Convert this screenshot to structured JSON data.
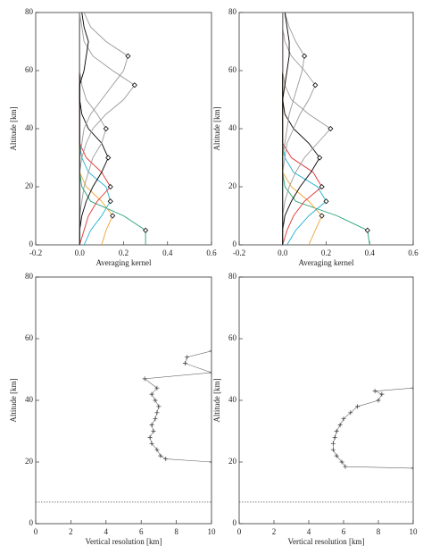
{
  "chart_data": [
    {
      "type": "line",
      "x_label": "Averaging kernel",
      "y_label": "Altitude [km]",
      "xlim": [
        -0.2,
        0.6
      ],
      "xticks": [
        -0.2,
        {
          "value": 0,
          "label": "0.0"
        },
        0.2,
        0.4,
        0.6
      ],
      "ylim": [
        0,
        80
      ],
      "yticks": [
        0,
        20,
        40,
        60,
        80
      ],
      "y": [
        0,
        5,
        10,
        15,
        20,
        25,
        30,
        35,
        40,
        45,
        50,
        55,
        60,
        65,
        70,
        75,
        80
      ],
      "series": [
        {
          "color": "#20a070",
          "values": [
            0.3,
            0.3,
            0.2,
            0.05,
            0.01,
            0,
            0,
            0,
            0,
            0,
            0,
            0,
            0,
            0,
            0,
            0,
            0
          ]
        },
        {
          "color": "#f0a030",
          "values": [
            0.1,
            0.12,
            0.15,
            0.1,
            0.03,
            0,
            0,
            0,
            0,
            0,
            0,
            0,
            0,
            0,
            0,
            0,
            0
          ]
        },
        {
          "color": "#20b0d0",
          "values": [
            0.02,
            0.05,
            0.1,
            0.14,
            0.12,
            0.04,
            0.01,
            0,
            0,
            0,
            0,
            0,
            0,
            0,
            0,
            0,
            0
          ]
        },
        {
          "color": "#e03030",
          "values": [
            0,
            0.02,
            0.04,
            0.08,
            0.14,
            0.1,
            0.03,
            0,
            0,
            0,
            0,
            0,
            0,
            0,
            0,
            0,
            0
          ]
        },
        {
          "color": "#000000",
          "values": [
            0,
            0,
            0.01,
            0.03,
            0.06,
            0.1,
            0.13,
            0.1,
            0.04,
            0.01,
            0,
            0,
            0,
            0,
            0,
            0,
            0
          ]
        },
        {
          "color": "#999999",
          "values": [
            0,
            0,
            0,
            0.01,
            0.02,
            0.04,
            0.06,
            0.1,
            0.12,
            0.08,
            0.03,
            0.01,
            0,
            0,
            0,
            0,
            0
          ]
        },
        {
          "color": "#999999",
          "values": [
            0,
            0,
            0,
            0,
            0,
            0,
            0.01,
            0.03,
            0.06,
            0.12,
            0.2,
            0.25,
            0.15,
            0.06,
            0.02,
            0.01,
            0
          ]
        },
        {
          "color": "#999999",
          "values": [
            0,
            0,
            0,
            0,
            0,
            0,
            0,
            0.01,
            0.02,
            0.05,
            0.1,
            0.15,
            0.2,
            0.22,
            0.12,
            0.05,
            0.02
          ]
        },
        {
          "color": "#000000",
          "values": [
            0,
            0,
            0,
            0,
            0,
            0,
            0,
            0,
            0,
            0,
            0,
            0,
            0.02,
            0.03,
            0.04,
            0.02,
            0.01
          ]
        }
      ],
      "markers": {
        "x": [
          0.3,
          0.15,
          0.14,
          0.14,
          0.13,
          0.12,
          0.25,
          0.22
        ],
        "y": [
          5,
          10,
          15,
          20,
          30,
          40,
          55,
          65
        ]
      }
    },
    {
      "type": "line",
      "x_label": "Averaging kernel",
      "y_label": "Altitude [km]",
      "xlim": [
        -0.2,
        0.6
      ],
      "xticks": [
        -0.2,
        {
          "value": 0,
          "label": "0.0"
        },
        0.2,
        0.4,
        0.6
      ],
      "ylim": [
        0,
        80
      ],
      "yticks": [
        0,
        20,
        40,
        60,
        80
      ],
      "y": [
        0,
        5,
        10,
        15,
        20,
        25,
        30,
        35,
        40,
        45,
        50,
        55,
        60,
        65,
        70,
        75,
        80
      ],
      "series": [
        {
          "color": "#20a070",
          "values": [
            0.4,
            0.39,
            0.25,
            0.06,
            0.01,
            0,
            0,
            0,
            0,
            0,
            0,
            0,
            0,
            0,
            0,
            0,
            0
          ]
        },
        {
          "color": "#f0a030",
          "values": [
            0.12,
            0.15,
            0.18,
            0.12,
            0.04,
            0,
            0,
            0,
            0,
            0,
            0,
            0,
            0,
            0,
            0,
            0,
            0
          ]
        },
        {
          "color": "#20b0d0",
          "values": [
            0.02,
            0.06,
            0.12,
            0.2,
            0.16,
            0.05,
            0.01,
            0,
            0,
            0,
            0,
            0,
            0,
            0,
            0,
            0,
            0
          ]
        },
        {
          "color": "#e03030",
          "values": [
            0,
            0.02,
            0.05,
            0.1,
            0.18,
            0.14,
            0.04,
            0,
            0,
            0,
            0,
            0,
            0,
            0,
            0,
            0,
            0
          ]
        },
        {
          "color": "#000000",
          "values": [
            0,
            0,
            0.01,
            0.04,
            0.08,
            0.13,
            0.17,
            0.12,
            0.05,
            0.01,
            0,
            0,
            0,
            0,
            0,
            0,
            0
          ]
        },
        {
          "color": "#999999",
          "values": [
            0,
            0,
            0,
            0.01,
            0.03,
            0.06,
            0.1,
            0.16,
            0.22,
            0.12,
            0.04,
            0.01,
            0,
            0,
            0,
            0,
            0
          ]
        },
        {
          "color": "#999999",
          "values": [
            0,
            0,
            0,
            0,
            0,
            0,
            0.01,
            0.02,
            0.05,
            0.08,
            0.12,
            0.15,
            0.1,
            0.04,
            0.01,
            0,
            0
          ]
        },
        {
          "color": "#999999",
          "values": [
            0,
            0,
            0,
            0,
            0,
            0,
            0,
            0.01,
            0.02,
            0.03,
            0.05,
            0.07,
            0.09,
            0.1,
            0.06,
            0.03,
            0.01
          ]
        },
        {
          "color": "#000000",
          "values": [
            0,
            0,
            0,
            0,
            0,
            0,
            0,
            0,
            0,
            0,
            0,
            0.01,
            0.02,
            0.03,
            0.03,
            0.02,
            0.01
          ]
        }
      ],
      "markers": {
        "x": [
          0.39,
          0.18,
          0.2,
          0.18,
          0.17,
          0.22,
          0.15,
          0.1
        ],
        "y": [
          5,
          10,
          15,
          20,
          30,
          40,
          55,
          65
        ]
      }
    },
    {
      "type": "resolution",
      "x_label": "Vertical resolution [km]",
      "y_label": "Altitude [km]",
      "xlim": [
        0,
        10
      ],
      "xticks": [
        0,
        2,
        4,
        6,
        8,
        10
      ],
      "ylim": [
        0,
        80
      ],
      "yticks": [
        0,
        20,
        40,
        60,
        80
      ],
      "reference_altitude": 7,
      "series": [
        {
          "color": "#666666",
          "y": [
            20,
            21,
            22,
            24,
            26,
            28,
            30,
            32,
            34,
            36,
            38,
            40,
            42,
            44,
            47,
            49,
            52,
            54,
            56
          ],
          "values": [
            10,
            7.4,
            7.1,
            6.9,
            6.6,
            6.5,
            6.7,
            6.6,
            6.8,
            6.9,
            7.0,
            6.8,
            6.6,
            6.9,
            6.2,
            10,
            8.5,
            8.6,
            10
          ]
        }
      ]
    },
    {
      "type": "resolution",
      "x_label": "Vertical resolution [km]",
      "y_label": "Altitude [km]",
      "xlim": [
        0,
        10
      ],
      "xticks": [
        0,
        2,
        4,
        6,
        8,
        10
      ],
      "ylim": [
        0,
        80
      ],
      "yticks": [
        0,
        20,
        40,
        60,
        80
      ],
      "reference_altitude": 7,
      "series": [
        {
          "color": "#666666",
          "y": [
            18,
            18.5,
            20,
            22,
            24,
            26,
            28,
            30,
            32,
            34,
            36,
            38,
            40,
            42,
            43,
            44
          ],
          "values": [
            10,
            6.1,
            5.9,
            5.6,
            5.4,
            5.4,
            5.5,
            5.6,
            5.8,
            6.0,
            6.4,
            6.8,
            8.0,
            8.2,
            7.8,
            10
          ]
        }
      ]
    }
  ]
}
